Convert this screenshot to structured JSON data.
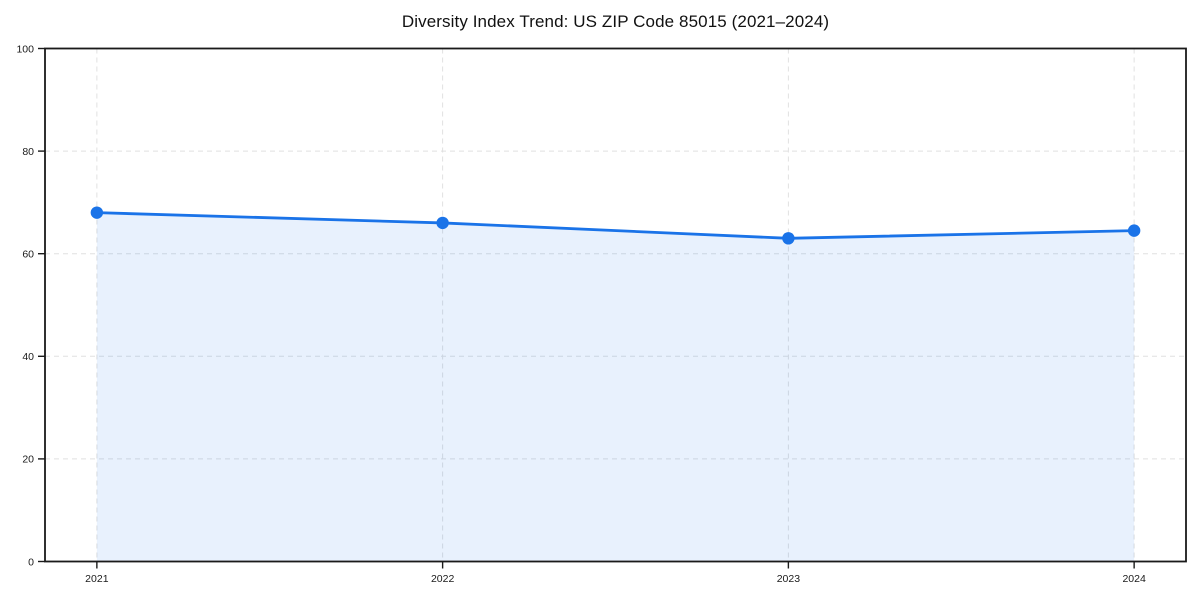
{
  "chart_data": {
    "type": "area",
    "title": "Diversity Index Trend: US ZIP Code 85015 (2021–2024)",
    "x": [
      "2021",
      "2022",
      "2023",
      "2024"
    ],
    "series": [
      {
        "name": "Diversity Index",
        "values": [
          68,
          66,
          63,
          64.5
        ]
      }
    ],
    "xlabel": "",
    "ylabel": "",
    "ylim": [
      0,
      100
    ],
    "yticks": [
      0,
      20,
      40,
      60,
      80,
      100
    ],
    "grid": "dashed",
    "legend": "none",
    "colors": {
      "line": "#1a73e8",
      "fill": "#1a73e8",
      "fill_opacity": 0.1,
      "grid": "#e0e0e0",
      "spine": "#1a1a1a",
      "text": "#1a1a1a",
      "background": "#ffffff"
    }
  }
}
